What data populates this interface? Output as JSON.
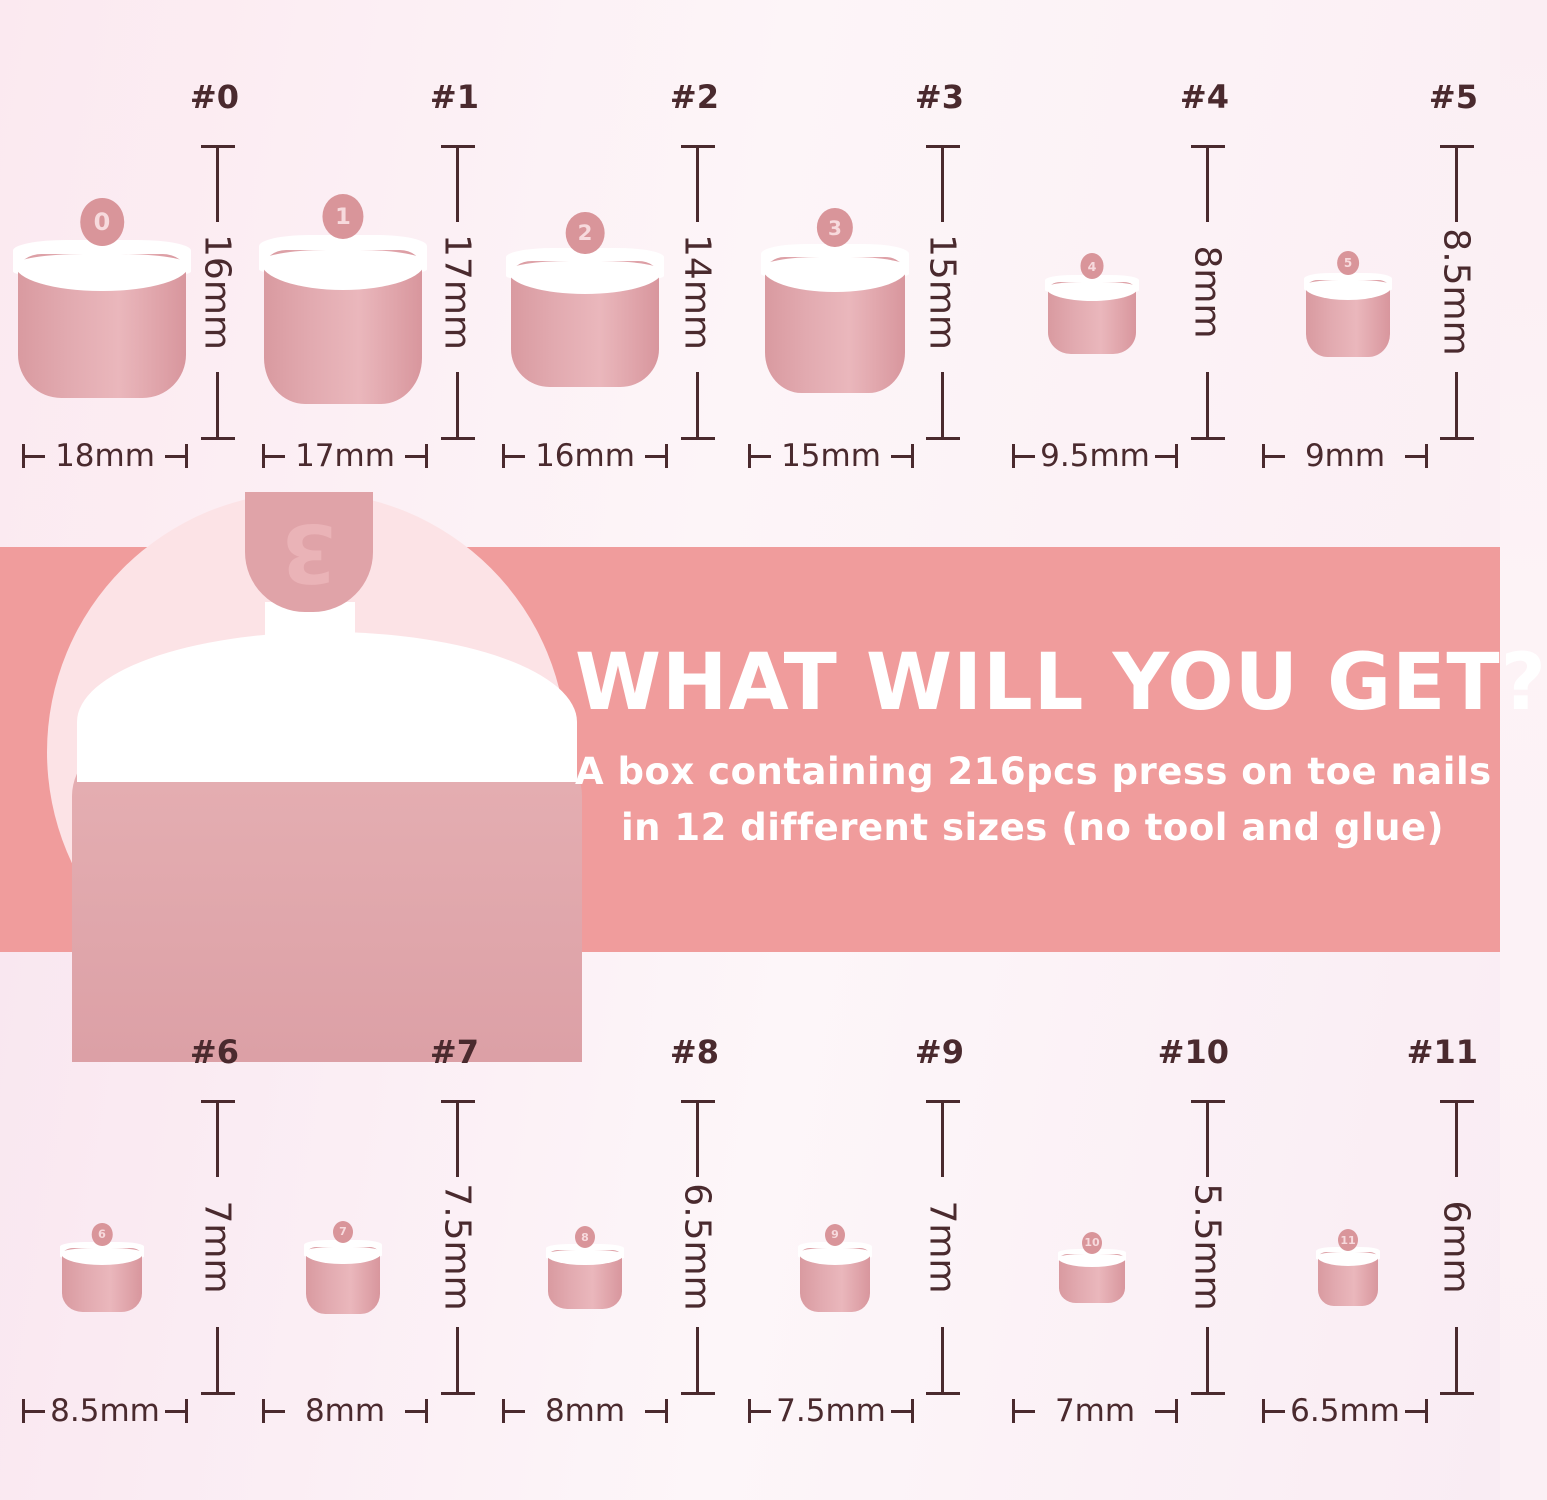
{
  "colors": {
    "banner": "#f09c9c",
    "text": "#4a2a2e",
    "nail_pink": "#e2aab0",
    "nail_tip": "#ffffff"
  },
  "top_row": [
    {
      "label": "#0",
      "number": "0",
      "length": "16mm",
      "width": "18mm",
      "length_mm": 16,
      "width_mm": 18
    },
    {
      "label": "#1",
      "number": "1",
      "length": "17mm",
      "width": "17mm",
      "length_mm": 17,
      "width_mm": 17
    },
    {
      "label": "#2",
      "number": "2",
      "length": "14mm",
      "width": "16mm",
      "length_mm": 14,
      "width_mm": 16
    },
    {
      "label": "#3",
      "number": "3",
      "length": "15mm",
      "width": "15mm",
      "length_mm": 15,
      "width_mm": 15
    },
    {
      "label": "#4",
      "number": "4",
      "length": "8mm",
      "width": "9.5mm",
      "length_mm": 8,
      "width_mm": 9.5
    },
    {
      "label": "#5",
      "number": "5",
      "length": "8.5mm",
      "width": "9mm",
      "length_mm": 8.5,
      "width_mm": 9
    }
  ],
  "bottom_row": [
    {
      "label": "#6",
      "number": "6",
      "length": "7mm",
      "width": "8.5mm",
      "length_mm": 7,
      "width_mm": 8.5
    },
    {
      "label": "#7",
      "number": "7",
      "length": "7.5mm",
      "width": "8mm",
      "length_mm": 7.5,
      "width_mm": 8
    },
    {
      "label": "#8",
      "number": "8",
      "length": "6.5mm",
      "width": "8mm",
      "length_mm": 6.5,
      "width_mm": 8
    },
    {
      "label": "#9",
      "number": "9",
      "length": "7mm",
      "width": "7.5mm",
      "length_mm": 7,
      "width_mm": 7.5
    },
    {
      "label": "#10",
      "number": "10",
      "length": "5.5mm",
      "width": "7mm",
      "length_mm": 5.5,
      "width_mm": 7
    },
    {
      "label": "#11",
      "number": "11",
      "length": "6mm",
      "width": "6.5mm",
      "length_mm": 6,
      "width_mm": 6.5
    }
  ],
  "banner": {
    "title": "WHAT WILL YOU GET?",
    "line1": "A box containing 216pcs press on toe nails",
    "line2": "in 12 different sizes (no tool and glue)",
    "closeup_number": "3"
  }
}
